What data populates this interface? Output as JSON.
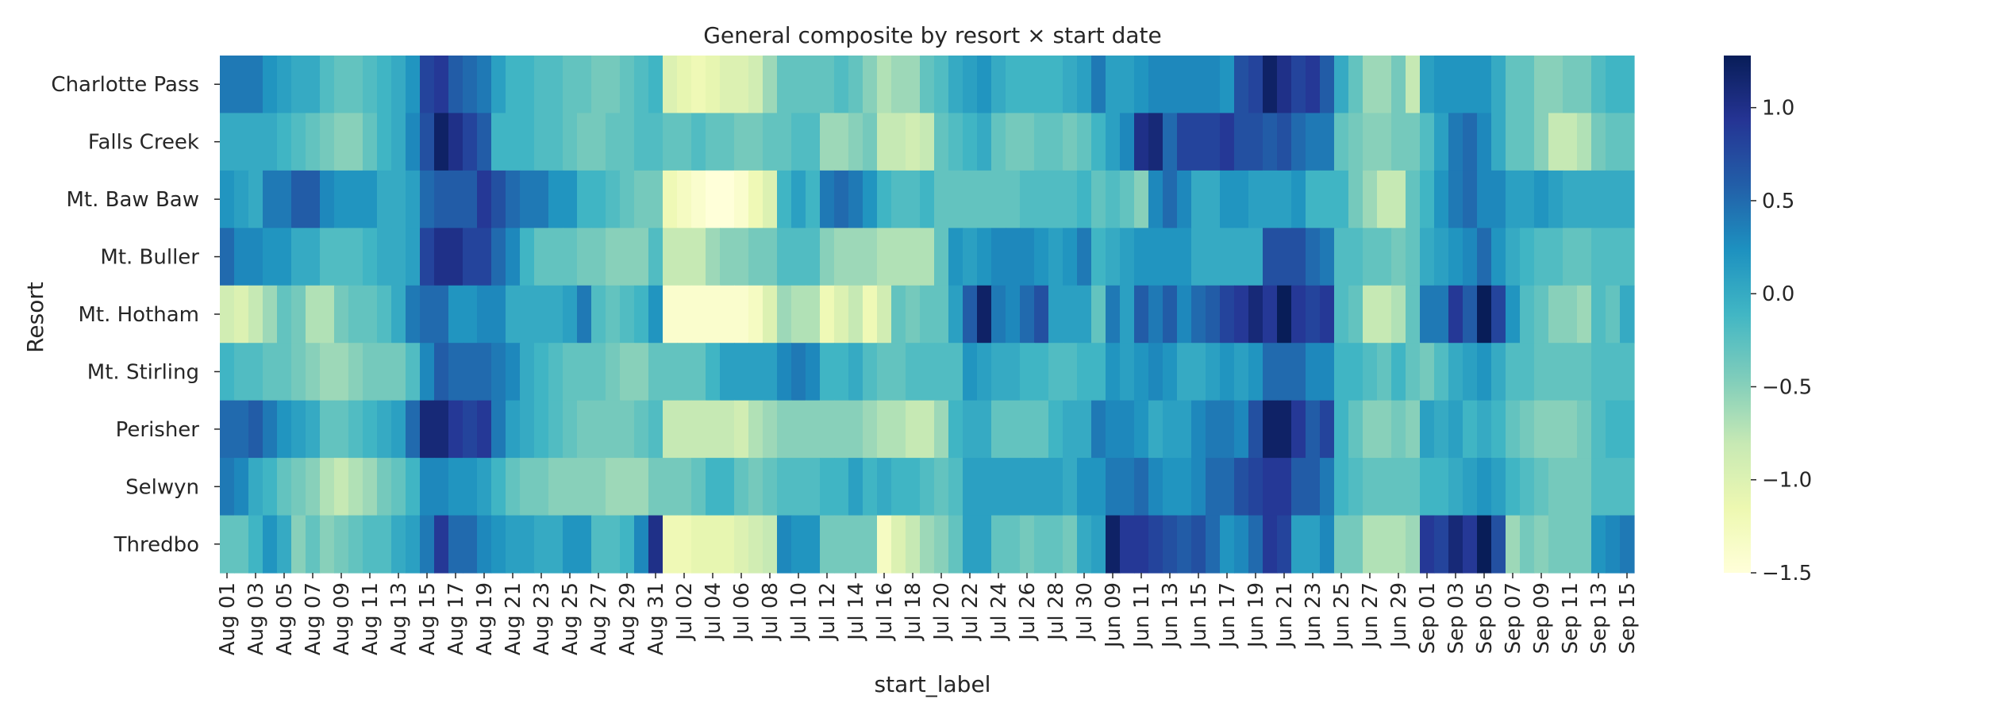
{
  "chart_data": {
    "type": "heatmap",
    "title": "General composite by resort × start date",
    "xlabel": "start_label",
    "ylabel": "Resort",
    "rows": [
      "Charlotte Pass",
      "Falls Creek",
      "Mt. Baw Baw",
      "Mt. Buller",
      "Mt. Hotham",
      "Mt. Stirling",
      "Perisher",
      "Selwyn",
      "Thredbo"
    ],
    "columns": [
      "Aug 01",
      "Aug 02",
      "Aug 03",
      "Aug 04",
      "Aug 05",
      "Aug 06",
      "Aug 07",
      "Aug 08",
      "Aug 09",
      "Aug 10",
      "Aug 11",
      "Aug 12",
      "Aug 13",
      "Aug 14",
      "Aug 15",
      "Aug 16",
      "Aug 17",
      "Aug 18",
      "Aug 19",
      "Aug 20",
      "Aug 21",
      "Aug 22",
      "Aug 23",
      "Aug 24",
      "Aug 25",
      "Aug 26",
      "Aug 27",
      "Aug 28",
      "Aug 29",
      "Aug 30",
      "Aug 31",
      "Jul 01",
      "Jul 02",
      "Jul 03",
      "Jul 04",
      "Jul 05",
      "Jul 06",
      "Jul 07",
      "Jul 08",
      "Jul 09",
      "Jul 10",
      "Jul 11",
      "Jul 12",
      "Jul 13",
      "Jul 14",
      "Jul 15",
      "Jul 16",
      "Jul 17",
      "Jul 18",
      "Jul 19",
      "Jul 20",
      "Jul 21",
      "Jul 22",
      "Jul 23",
      "Jul 24",
      "Jul 25",
      "Jul 26",
      "Jul 27",
      "Jul 28",
      "Jul 29",
      "Jul 30",
      "Jul 31",
      "Jun 09",
      "Jun 10",
      "Jun 11",
      "Jun 12",
      "Jun 13",
      "Jun 14",
      "Jun 15",
      "Jun 16",
      "Jun 17",
      "Jun 18",
      "Jun 19",
      "Jun 20",
      "Jun 21",
      "Jun 22",
      "Jun 23",
      "Jun 24",
      "Jun 25",
      "Jun 26",
      "Jun 27",
      "Jun 28",
      "Jun 29",
      "Jun 30",
      "Sep 01",
      "Sep 02",
      "Sep 03",
      "Sep 04",
      "Sep 05",
      "Sep 06",
      "Sep 07",
      "Sep 08",
      "Sep 09",
      "Sep 10",
      "Sep 11",
      "Sep 12",
      "Sep 13",
      "Sep 14",
      "Sep 15"
    ],
    "tick_labels": [
      "Aug 01",
      "Aug 03",
      "Aug 05",
      "Aug 07",
      "Aug 09",
      "Aug 11",
      "Aug 13",
      "Aug 15",
      "Aug 17",
      "Aug 19",
      "Aug 21",
      "Aug 23",
      "Aug 25",
      "Aug 27",
      "Aug 29",
      "Aug 31",
      "Jul 02",
      "Jul 04",
      "Jul 06",
      "Jul 08",
      "Jul 10",
      "Jul 12",
      "Jul 14",
      "Jul 16",
      "Jul 18",
      "Jul 20",
      "Jul 22",
      "Jul 24",
      "Jul 26",
      "Jul 28",
      "Jul 30",
      "Jun 09",
      "Jun 11",
      "Jun 13",
      "Jun 15",
      "Jun 17",
      "Jun 19",
      "Jun 21",
      "Jun 23",
      "Jun 25",
      "Jun 27",
      "Jun 29",
      "Sep 01",
      "Sep 03",
      "Sep 05",
      "Sep 07",
      "Sep 09",
      "Sep 11",
      "Sep 13",
      "Sep 15"
    ],
    "values": [
      [
        0.4,
        0.4,
        0.4,
        0.2,
        0.1,
        0.0,
        0.0,
        -0.2,
        -0.3,
        -0.3,
        -0.2,
        -0.1,
        0.0,
        0.2,
        0.8,
        0.9,
        0.6,
        0.5,
        0.4,
        0.1,
        -0.1,
        -0.1,
        -0.2,
        -0.2,
        -0.3,
        -0.3,
        -0.4,
        -0.4,
        -0.3,
        -0.2,
        -0.1,
        -1.0,
        -1.1,
        -1.2,
        -1.1,
        -1.0,
        -1.0,
        -0.9,
        -0.6,
        -0.3,
        -0.3,
        -0.3,
        -0.3,
        -0.2,
        -0.3,
        -0.5,
        -0.7,
        -0.6,
        -0.6,
        -0.3,
        -0.2,
        0.0,
        0.1,
        0.2,
        0.0,
        -0.1,
        -0.1,
        -0.1,
        -0.1,
        0.0,
        0.1,
        0.4,
        0.1,
        0.1,
        0.2,
        0.3,
        0.3,
        0.3,
        0.3,
        0.3,
        0.2,
        0.7,
        0.8,
        1.2,
        1.0,
        0.8,
        0.9,
        0.6,
        0.0,
        -0.3,
        -0.6,
        -0.6,
        -0.4,
        -0.8,
        0.1,
        0.2,
        0.2,
        0.2,
        0.2,
        0.0,
        -0.3,
        -0.3,
        -0.5,
        -0.5,
        -0.4,
        -0.4,
        -0.2,
        -0.1,
        -0.1
      ],
      [
        0.0,
        0.0,
        0.0,
        0.0,
        -0.1,
        -0.2,
        -0.3,
        -0.4,
        -0.5,
        -0.5,
        -0.3,
        -0.1,
        0.0,
        0.3,
        0.7,
        1.2,
        1.0,
        0.8,
        0.6,
        -0.1,
        -0.1,
        -0.1,
        -0.2,
        -0.2,
        -0.3,
        -0.4,
        -0.4,
        -0.3,
        -0.3,
        -0.2,
        -0.2,
        -0.3,
        -0.3,
        -0.2,
        -0.3,
        -0.3,
        -0.4,
        -0.4,
        -0.3,
        -0.3,
        -0.2,
        -0.2,
        -0.6,
        -0.6,
        -0.5,
        -0.4,
        -0.8,
        -0.8,
        -0.9,
        -0.8,
        -0.3,
        -0.2,
        -0.1,
        0.0,
        -0.3,
        -0.4,
        -0.4,
        -0.3,
        -0.3,
        -0.4,
        -0.3,
        -0.1,
        0.1,
        0.3,
        1.0,
        1.1,
        0.5,
        0.8,
        0.8,
        0.8,
        0.9,
        0.7,
        0.7,
        0.6,
        0.7,
        0.5,
        0.4,
        0.4,
        -0.3,
        -0.4,
        -0.5,
        -0.5,
        -0.4,
        -0.4,
        -0.2,
        0.1,
        0.4,
        0.5,
        0.3,
        0.0,
        -0.3,
        -0.3,
        -0.5,
        -0.8,
        -0.8,
        -0.7,
        -0.4,
        -0.3,
        -0.3
      ],
      [
        0.2,
        0.1,
        0.0,
        0.4,
        0.4,
        0.6,
        0.6,
        0.3,
        0.2,
        0.2,
        0.2,
        0.0,
        0.0,
        0.1,
        0.5,
        0.6,
        0.6,
        0.6,
        0.9,
        0.7,
        0.5,
        0.4,
        0.4,
        0.2,
        0.2,
        -0.1,
        -0.1,
        -0.2,
        -0.3,
        -0.4,
        -0.4,
        -1.2,
        -1.3,
        -1.4,
        -1.5,
        -1.5,
        -1.4,
        -1.2,
        -1.0,
        -0.1,
        0.1,
        -0.1,
        0.4,
        0.5,
        0.4,
        0.2,
        -0.1,
        -0.2,
        -0.2,
        -0.1,
        -0.3,
        -0.3,
        -0.3,
        -0.3,
        -0.3,
        -0.3,
        -0.2,
        -0.2,
        -0.2,
        -0.2,
        -0.1,
        -0.3,
        -0.2,
        -0.3,
        -0.5,
        0.3,
        0.5,
        0.3,
        0.0,
        0.0,
        0.2,
        0.2,
        0.1,
        0.1,
        0.1,
        0.2,
        -0.1,
        -0.1,
        -0.1,
        -0.4,
        -0.6,
        -0.8,
        -0.8,
        -0.3,
        -0.1,
        0.2,
        0.4,
        0.5,
        0.3,
        0.3,
        0.1,
        0.1,
        0.2,
        0.1,
        0.0,
        0.0,
        0.0,
        0.0,
        0.0
      ],
      [
        0.5,
        0.3,
        0.3,
        0.2,
        0.2,
        0.0,
        0.0,
        -0.2,
        -0.2,
        -0.2,
        -0.1,
        0.0,
        0.0,
        0.1,
        0.8,
        1.0,
        1.0,
        0.8,
        0.8,
        0.5,
        0.3,
        -0.1,
        -0.3,
        -0.3,
        -0.3,
        -0.4,
        -0.4,
        -0.5,
        -0.5,
        -0.5,
        -0.2,
        -0.8,
        -0.8,
        -0.8,
        -0.6,
        -0.5,
        -0.5,
        -0.4,
        -0.4,
        -0.2,
        -0.2,
        -0.2,
        -0.5,
        -0.6,
        -0.6,
        -0.6,
        -0.7,
        -0.7,
        -0.7,
        -0.7,
        -0.3,
        0.2,
        0.1,
        0.2,
        0.3,
        0.3,
        0.3,
        0.2,
        0.1,
        0.2,
        0.4,
        -0.1,
        0.0,
        0.1,
        0.2,
        0.2,
        0.2,
        0.2,
        0.0,
        0.0,
        0.0,
        0.0,
        0.0,
        0.7,
        0.7,
        0.7,
        0.5,
        0.4,
        -0.2,
        -0.2,
        -0.3,
        -0.3,
        -0.4,
        -0.3,
        0.0,
        0.1,
        0.2,
        0.3,
        0.5,
        0.2,
        0.0,
        -0.1,
        -0.2,
        -0.2,
        -0.3,
        -0.3,
        -0.2,
        -0.2,
        -0.2
      ],
      [
        -0.9,
        -1.0,
        -0.8,
        -0.6,
        -0.3,
        -0.4,
        -0.7,
        -0.7,
        -0.4,
        -0.3,
        -0.3,
        -0.2,
        0.0,
        0.4,
        0.5,
        0.5,
        0.2,
        0.2,
        0.3,
        0.3,
        0.0,
        0.0,
        0.0,
        0.0,
        0.1,
        0.4,
        -0.2,
        -0.3,
        -0.2,
        -0.1,
        0.2,
        -1.4,
        -1.4,
        -1.4,
        -1.4,
        -1.4,
        -1.4,
        -1.3,
        -1.0,
        -0.6,
        -0.7,
        -0.7,
        -1.2,
        -1.0,
        -0.8,
        -1.2,
        -0.9,
        -0.3,
        -0.4,
        -0.3,
        -0.3,
        0.1,
        0.6,
        1.2,
        0.4,
        0.3,
        0.5,
        0.7,
        0.1,
        0.1,
        0.1,
        -0.3,
        0.4,
        0.1,
        0.6,
        0.4,
        0.6,
        0.3,
        0.5,
        0.6,
        0.8,
        0.9,
        1.1,
        0.9,
        1.3,
        0.9,
        0.8,
        0.9,
        -0.2,
        -0.3,
        -0.8,
        -0.8,
        -0.7,
        -0.3,
        0.4,
        0.4,
        0.9,
        0.6,
        1.3,
        0.8,
        0.2,
        -0.2,
        -0.3,
        -0.5,
        -0.5,
        -0.6,
        -0.2,
        -0.3,
        0.0
      ],
      [
        -0.1,
        -0.2,
        -0.2,
        -0.3,
        -0.3,
        -0.4,
        -0.5,
        -0.6,
        -0.6,
        -0.5,
        -0.4,
        -0.4,
        -0.4,
        -0.2,
        0.3,
        0.6,
        0.5,
        0.5,
        0.5,
        0.4,
        0.3,
        0.0,
        -0.1,
        -0.2,
        -0.3,
        -0.3,
        -0.3,
        -0.4,
        -0.5,
        -0.5,
        -0.3,
        -0.3,
        -0.3,
        -0.3,
        -0.1,
        0.1,
        0.1,
        0.1,
        0.1,
        0.3,
        0.4,
        0.3,
        -0.1,
        -0.1,
        0.0,
        -0.2,
        -0.3,
        -0.3,
        -0.2,
        -0.2,
        -0.2,
        -0.2,
        0.2,
        0.1,
        0.0,
        0.0,
        -0.1,
        -0.1,
        -0.2,
        -0.2,
        -0.1,
        -0.1,
        0.2,
        0.1,
        0.2,
        0.3,
        0.2,
        0.0,
        0.0,
        0.1,
        0.2,
        0.1,
        0.2,
        0.5,
        0.5,
        0.5,
        0.3,
        0.3,
        -0.1,
        -0.1,
        -0.2,
        -0.3,
        -0.1,
        -0.3,
        -0.4,
        -0.2,
        0.0,
        0.1,
        0.2,
        0.0,
        -0.2,
        -0.2,
        -0.3,
        -0.3,
        -0.3,
        -0.3,
        -0.2,
        -0.2,
        -0.2
      ],
      [
        0.5,
        0.5,
        0.6,
        0.4,
        0.2,
        0.1,
        0.0,
        -0.3,
        -0.3,
        -0.2,
        -0.1,
        0.0,
        0.1,
        0.5,
        1.1,
        1.1,
        0.9,
        0.8,
        0.9,
        0.4,
        0.1,
        0.0,
        -0.1,
        -0.2,
        -0.3,
        -0.4,
        -0.4,
        -0.4,
        -0.4,
        -0.3,
        -0.2,
        -0.8,
        -0.8,
        -0.8,
        -0.8,
        -0.8,
        -0.9,
        -0.7,
        -0.6,
        -0.5,
        -0.5,
        -0.5,
        -0.5,
        -0.5,
        -0.5,
        -0.6,
        -0.7,
        -0.7,
        -0.8,
        -0.8,
        -0.6,
        -0.1,
        0.0,
        0.0,
        -0.3,
        -0.3,
        -0.3,
        -0.3,
        -0.1,
        0.0,
        0.0,
        0.4,
        0.3,
        0.3,
        0.2,
        0.0,
        0.1,
        0.1,
        0.3,
        0.4,
        0.4,
        0.3,
        0.7,
        1.2,
        1.2,
        0.9,
        0.6,
        0.8,
        -0.1,
        -0.3,
        -0.5,
        -0.5,
        -0.4,
        -0.5,
        0.1,
        0.0,
        0.1,
        -0.1,
        0.0,
        -0.1,
        -0.3,
        -0.4,
        -0.5,
        -0.5,
        -0.5,
        -0.4,
        -0.2,
        -0.1,
        -0.1
      ],
      [
        0.4,
        0.3,
        0.0,
        -0.1,
        -0.3,
        -0.4,
        -0.5,
        -0.7,
        -0.8,
        -0.7,
        -0.6,
        -0.4,
        -0.3,
        -0.1,
        0.3,
        0.3,
        0.2,
        0.2,
        0.1,
        -0.1,
        -0.3,
        -0.4,
        -0.4,
        -0.5,
        -0.5,
        -0.5,
        -0.5,
        -0.6,
        -0.6,
        -0.6,
        -0.4,
        -0.4,
        -0.4,
        -0.3,
        -0.1,
        -0.1,
        -0.3,
        -0.4,
        -0.3,
        -0.2,
        -0.2,
        -0.2,
        -0.1,
        -0.1,
        0.1,
        -0.1,
        0.0,
        -0.1,
        -0.1,
        -0.2,
        -0.3,
        -0.2,
        0.1,
        0.1,
        0.1,
        0.1,
        0.1,
        0.1,
        0.1,
        0.0,
        0.2,
        0.2,
        0.4,
        0.4,
        0.5,
        0.3,
        0.2,
        0.2,
        0.3,
        0.5,
        0.5,
        0.7,
        0.8,
        0.9,
        0.9,
        0.6,
        0.6,
        0.4,
        -0.1,
        -0.2,
        -0.3,
        -0.3,
        -0.3,
        -0.3,
        -0.1,
        -0.1,
        0.0,
        0.1,
        0.2,
        0.1,
        -0.1,
        -0.2,
        -0.3,
        -0.4,
        -0.4,
        -0.4,
        -0.2,
        -0.2,
        -0.2
      ],
      [
        -0.3,
        -0.3,
        -0.1,
        0.2,
        0.0,
        -0.5,
        -0.3,
        -0.5,
        -0.4,
        -0.3,
        -0.2,
        -0.2,
        0.0,
        0.1,
        0.4,
        0.9,
        0.5,
        0.5,
        0.3,
        0.2,
        0.1,
        0.1,
        0.0,
        0.0,
        0.2,
        0.2,
        -0.2,
        -0.2,
        -0.1,
        0.3,
        1.0,
        -1.2,
        -1.2,
        -1.1,
        -1.1,
        -1.1,
        -1.0,
        -0.9,
        -0.8,
        0.3,
        0.2,
        0.2,
        -0.4,
        -0.4,
        -0.4,
        -0.4,
        -1.3,
        -1.0,
        -0.8,
        -0.6,
        -0.5,
        -0.3,
        0.1,
        0.1,
        -0.3,
        -0.3,
        -0.4,
        -0.3,
        -0.3,
        -0.4,
        0.0,
        0.1,
        1.2,
        0.9,
        0.9,
        0.8,
        0.7,
        0.6,
        0.7,
        0.5,
        0.2,
        0.3,
        0.5,
        0.9,
        0.8,
        0.1,
        0.1,
        0.3,
        -0.4,
        -0.4,
        -0.7,
        -0.7,
        -0.7,
        -0.6,
        0.9,
        0.8,
        1.1,
        0.9,
        1.3,
        0.7,
        -0.6,
        -0.4,
        -0.5,
        -0.4,
        -0.4,
        -0.4,
        0.2,
        0.3,
        0.4
      ]
    ],
    "vmin": -1.5,
    "vmax": 1.28,
    "colormap": "YlGnBu",
    "colorbar": {
      "ticks": [
        1.0,
        0.5,
        0.0,
        -0.5,
        -1.0,
        -1.5
      ],
      "tick_labels": [
        "1.0",
        "0.5",
        "0.0",
        "−0.5",
        "−1.0",
        "−1.5"
      ]
    },
    "grid": false
  }
}
